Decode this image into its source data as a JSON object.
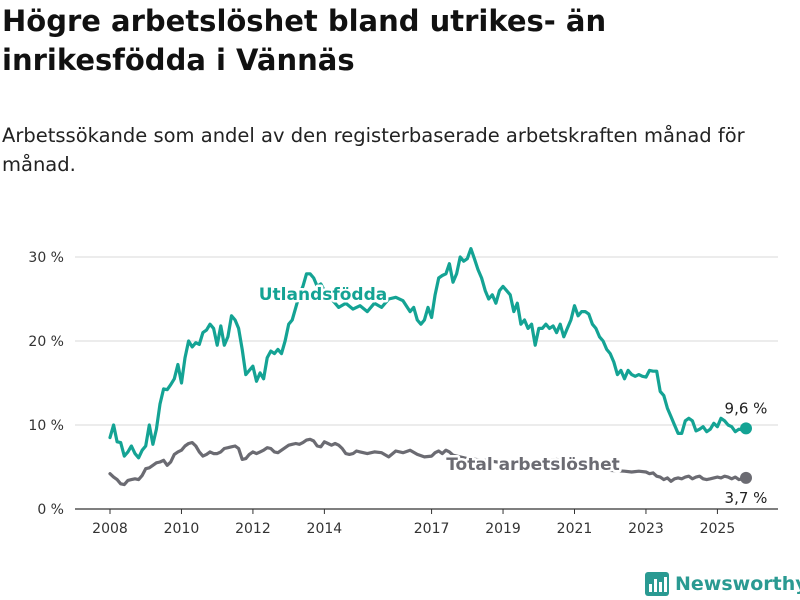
{
  "title": "Högre arbetslöshet bland utrikes- än inrikesfödda i Vännäs",
  "subtitle": "Arbetssökande som andel av den registerbaserade arbetskraften månad för månad.",
  "logo_text": "Newsworthy",
  "logo_icon": "newsworthy-logo-icon",
  "colors": {
    "foreign": "#14a394",
    "total": "#6b6b72",
    "grid": "#d9d9d9"
  },
  "chart_data": {
    "type": "line",
    "title": "Högre arbetslöshet bland utrikes- än inrikesfödda i Vännäs",
    "subtitle": "Arbetssökande som andel av den registerbaserade arbetskraften månad för månad.",
    "xlabel": "",
    "ylabel": "",
    "ylim": [
      0,
      30
    ],
    "xlim": [
      2008,
      2025.8
    ],
    "grid": true,
    "y_ticks": [
      0,
      10,
      20,
      30
    ],
    "y_tick_labels": [
      "0 %",
      "10 %",
      "20 %",
      "30 %"
    ],
    "x_ticks": [
      2008,
      2010,
      2012,
      2014,
      2017,
      2019,
      2021,
      2023,
      2025
    ],
    "x_tick_labels": [
      "2008",
      "2010",
      "2012",
      "2014",
      "2017",
      "2019",
      "2021",
      "2023",
      "2025"
    ],
    "series": [
      {
        "name": "Utlandsfödda",
        "color": "#14a394",
        "end_label": "9,6 %",
        "points": [
          [
            2008.0,
            8.5
          ],
          [
            2008.1,
            10.0
          ],
          [
            2008.2,
            8.0
          ],
          [
            2008.3,
            7.9
          ],
          [
            2008.4,
            6.3
          ],
          [
            2008.5,
            6.8
          ],
          [
            2008.6,
            7.5
          ],
          [
            2008.7,
            6.6
          ],
          [
            2008.8,
            6.1
          ],
          [
            2008.9,
            7.0
          ],
          [
            2009.0,
            7.5
          ],
          [
            2009.1,
            10.0
          ],
          [
            2009.2,
            7.7
          ],
          [
            2009.3,
            9.5
          ],
          [
            2009.4,
            12.5
          ],
          [
            2009.5,
            14.3
          ],
          [
            2009.6,
            14.2
          ],
          [
            2009.7,
            14.8
          ],
          [
            2009.8,
            15.5
          ],
          [
            2009.9,
            17.2
          ],
          [
            2010.0,
            15.0
          ],
          [
            2010.1,
            18.0
          ],
          [
            2010.2,
            20.0
          ],
          [
            2010.3,
            19.3
          ],
          [
            2010.4,
            19.8
          ],
          [
            2010.5,
            19.6
          ],
          [
            2010.6,
            21.0
          ],
          [
            2010.7,
            21.3
          ],
          [
            2010.8,
            22.0
          ],
          [
            2010.9,
            21.5
          ],
          [
            2011.0,
            19.5
          ],
          [
            2011.1,
            21.8
          ],
          [
            2011.2,
            19.5
          ],
          [
            2011.3,
            20.5
          ],
          [
            2011.4,
            23.0
          ],
          [
            2011.5,
            22.5
          ],
          [
            2011.6,
            21.5
          ],
          [
            2011.7,
            19.0
          ],
          [
            2011.8,
            16.0
          ],
          [
            2011.9,
            16.5
          ],
          [
            2012.0,
            17.0
          ],
          [
            2012.1,
            15.2
          ],
          [
            2012.2,
            16.2
          ],
          [
            2012.3,
            15.5
          ],
          [
            2012.4,
            18.0
          ],
          [
            2012.5,
            18.8
          ],
          [
            2012.6,
            18.5
          ],
          [
            2012.7,
            19.0
          ],
          [
            2012.8,
            18.5
          ],
          [
            2012.9,
            20.0
          ],
          [
            2013.0,
            22.0
          ],
          [
            2013.1,
            22.5
          ],
          [
            2013.2,
            24.0
          ],
          [
            2013.3,
            25.5
          ],
          [
            2013.4,
            26.5
          ],
          [
            2013.5,
            28.0
          ],
          [
            2013.6,
            28.0
          ],
          [
            2013.7,
            27.5
          ],
          [
            2013.8,
            26.5
          ],
          [
            2013.9,
            26.8
          ],
          [
            2014.0,
            26.0
          ],
          [
            2014.2,
            25.0
          ],
          [
            2014.4,
            24.0
          ],
          [
            2014.6,
            24.5
          ],
          [
            2014.8,
            23.8
          ],
          [
            2015.0,
            24.2
          ],
          [
            2015.2,
            23.5
          ],
          [
            2015.4,
            24.5
          ],
          [
            2015.6,
            24.0
          ],
          [
            2015.8,
            25.0
          ],
          [
            2016.0,
            25.2
          ],
          [
            2016.2,
            24.8
          ],
          [
            2016.4,
            23.5
          ],
          [
            2016.5,
            24.0
          ],
          [
            2016.6,
            22.5
          ],
          [
            2016.7,
            22.0
          ],
          [
            2016.8,
            22.5
          ],
          [
            2016.9,
            24.0
          ],
          [
            2017.0,
            22.8
          ],
          [
            2017.1,
            25.5
          ],
          [
            2017.2,
            27.5
          ],
          [
            2017.3,
            27.8
          ],
          [
            2017.4,
            28.0
          ],
          [
            2017.5,
            29.2
          ],
          [
            2017.6,
            27.0
          ],
          [
            2017.7,
            28.0
          ],
          [
            2017.8,
            30.0
          ],
          [
            2017.9,
            29.5
          ],
          [
            2018.0,
            29.8
          ],
          [
            2018.1,
            31.0
          ],
          [
            2018.2,
            29.8
          ],
          [
            2018.3,
            28.5
          ],
          [
            2018.4,
            27.5
          ],
          [
            2018.5,
            26.0
          ],
          [
            2018.6,
            25.0
          ],
          [
            2018.7,
            25.5
          ],
          [
            2018.8,
            24.5
          ],
          [
            2018.9,
            26.0
          ],
          [
            2019.0,
            26.5
          ],
          [
            2019.1,
            26.0
          ],
          [
            2019.2,
            25.5
          ],
          [
            2019.3,
            23.5
          ],
          [
            2019.4,
            24.5
          ],
          [
            2019.5,
            22.0
          ],
          [
            2019.6,
            22.5
          ],
          [
            2019.7,
            21.5
          ],
          [
            2019.8,
            22.0
          ],
          [
            2019.9,
            19.5
          ],
          [
            2020.0,
            21.5
          ],
          [
            2020.1,
            21.5
          ],
          [
            2020.2,
            22.0
          ],
          [
            2020.3,
            21.5
          ],
          [
            2020.4,
            21.8
          ],
          [
            2020.5,
            21.0
          ],
          [
            2020.6,
            22.0
          ],
          [
            2020.7,
            20.5
          ],
          [
            2020.8,
            21.5
          ],
          [
            2020.9,
            22.5
          ],
          [
            2021.0,
            24.2
          ],
          [
            2021.1,
            23.0
          ],
          [
            2021.2,
            23.5
          ],
          [
            2021.3,
            23.5
          ],
          [
            2021.4,
            23.2
          ],
          [
            2021.5,
            22.0
          ],
          [
            2021.6,
            21.5
          ],
          [
            2021.7,
            20.5
          ],
          [
            2021.8,
            20.0
          ],
          [
            2021.9,
            19.0
          ],
          [
            2022.0,
            18.5
          ],
          [
            2022.1,
            17.5
          ],
          [
            2022.2,
            16.0
          ],
          [
            2022.3,
            16.5
          ],
          [
            2022.4,
            15.5
          ],
          [
            2022.5,
            16.5
          ],
          [
            2022.6,
            16.0
          ],
          [
            2022.7,
            15.8
          ],
          [
            2022.8,
            16.0
          ],
          [
            2022.9,
            15.8
          ],
          [
            2023.0,
            15.7
          ],
          [
            2023.1,
            16.5
          ],
          [
            2023.2,
            16.4
          ],
          [
            2023.3,
            16.4
          ],
          [
            2023.4,
            14.0
          ],
          [
            2023.5,
            13.5
          ],
          [
            2023.6,
            12.0
          ],
          [
            2023.7,
            11.0
          ],
          [
            2023.8,
            10.0
          ],
          [
            2023.9,
            9.0
          ],
          [
            2024.0,
            9.0
          ],
          [
            2024.1,
            10.5
          ],
          [
            2024.2,
            10.8
          ],
          [
            2024.3,
            10.5
          ],
          [
            2024.4,
            9.3
          ],
          [
            2024.5,
            9.5
          ],
          [
            2024.6,
            9.8
          ],
          [
            2024.7,
            9.2
          ],
          [
            2024.8,
            9.5
          ],
          [
            2024.9,
            10.2
          ],
          [
            2025.0,
            9.8
          ],
          [
            2025.1,
            10.8
          ],
          [
            2025.2,
            10.5
          ],
          [
            2025.3,
            10.0
          ],
          [
            2025.4,
            9.8
          ],
          [
            2025.5,
            9.2
          ],
          [
            2025.6,
            9.5
          ],
          [
            2025.7,
            9.4
          ],
          [
            2025.8,
            9.6
          ]
        ]
      },
      {
        "name": "Total arbetslöshet",
        "color": "#6b6b72",
        "end_label": "3,7 %",
        "points": [
          [
            2008.0,
            4.2
          ],
          [
            2008.1,
            3.8
          ],
          [
            2008.2,
            3.5
          ],
          [
            2008.3,
            3.0
          ],
          [
            2008.4,
            2.9
          ],
          [
            2008.5,
            3.4
          ],
          [
            2008.6,
            3.5
          ],
          [
            2008.7,
            3.6
          ],
          [
            2008.8,
            3.5
          ],
          [
            2008.9,
            4.0
          ],
          [
            2009.0,
            4.8
          ],
          [
            2009.1,
            4.9
          ],
          [
            2009.2,
            5.2
          ],
          [
            2009.3,
            5.5
          ],
          [
            2009.4,
            5.6
          ],
          [
            2009.5,
            5.8
          ],
          [
            2009.6,
            5.2
          ],
          [
            2009.7,
            5.6
          ],
          [
            2009.8,
            6.5
          ],
          [
            2009.9,
            6.8
          ],
          [
            2010.0,
            7.0
          ],
          [
            2010.1,
            7.5
          ],
          [
            2010.2,
            7.8
          ],
          [
            2010.3,
            7.9
          ],
          [
            2010.4,
            7.5
          ],
          [
            2010.5,
            6.8
          ],
          [
            2010.6,
            6.3
          ],
          [
            2010.7,
            6.5
          ],
          [
            2010.8,
            6.8
          ],
          [
            2010.9,
            6.6
          ],
          [
            2011.0,
            6.6
          ],
          [
            2011.1,
            6.8
          ],
          [
            2011.2,
            7.2
          ],
          [
            2011.3,
            7.3
          ],
          [
            2011.4,
            7.4
          ],
          [
            2011.5,
            7.5
          ],
          [
            2011.6,
            7.2
          ],
          [
            2011.7,
            5.9
          ],
          [
            2011.8,
            6.0
          ],
          [
            2011.9,
            6.5
          ],
          [
            2012.0,
            6.8
          ],
          [
            2012.1,
            6.6
          ],
          [
            2012.2,
            6.8
          ],
          [
            2012.3,
            7.0
          ],
          [
            2012.4,
            7.3
          ],
          [
            2012.5,
            7.2
          ],
          [
            2012.6,
            6.8
          ],
          [
            2012.7,
            6.7
          ],
          [
            2012.8,
            7.0
          ],
          [
            2012.9,
            7.3
          ],
          [
            2013.0,
            7.6
          ],
          [
            2013.1,
            7.7
          ],
          [
            2013.2,
            7.8
          ],
          [
            2013.3,
            7.7
          ],
          [
            2013.4,
            7.9
          ],
          [
            2013.5,
            8.2
          ],
          [
            2013.6,
            8.3
          ],
          [
            2013.7,
            8.1
          ],
          [
            2013.8,
            7.5
          ],
          [
            2013.9,
            7.4
          ],
          [
            2014.0,
            8.0
          ],
          [
            2014.1,
            7.8
          ],
          [
            2014.2,
            7.6
          ],
          [
            2014.3,
            7.8
          ],
          [
            2014.4,
            7.6
          ],
          [
            2014.5,
            7.2
          ],
          [
            2014.6,
            6.6
          ],
          [
            2014.7,
            6.5
          ],
          [
            2014.8,
            6.6
          ],
          [
            2014.9,
            6.9
          ],
          [
            2015.0,
            6.8
          ],
          [
            2015.2,
            6.6
          ],
          [
            2015.4,
            6.8
          ],
          [
            2015.6,
            6.7
          ],
          [
            2015.8,
            6.2
          ],
          [
            2016.0,
            6.9
          ],
          [
            2016.2,
            6.7
          ],
          [
            2016.4,
            7.0
          ],
          [
            2016.6,
            6.5
          ],
          [
            2016.8,
            6.2
          ],
          [
            2017.0,
            6.3
          ],
          [
            2017.1,
            6.7
          ],
          [
            2017.2,
            6.9
          ],
          [
            2017.3,
            6.6
          ],
          [
            2017.4,
            7.0
          ],
          [
            2017.5,
            6.8
          ],
          [
            2017.6,
            6.4
          ],
          [
            2017.8,
            6.2
          ],
          [
            2018.0,
            6.0
          ],
          [
            2018.5,
            5.8
          ],
          [
            2019.0,
            5.5
          ],
          [
            2019.5,
            5.4
          ],
          [
            2020.0,
            5.6
          ],
          [
            2020.5,
            5.9
          ],
          [
            2021.0,
            5.3
          ],
          [
            2021.5,
            5.0
          ],
          [
            2022.0,
            4.6
          ],
          [
            2022.4,
            4.5
          ],
          [
            2022.6,
            4.4
          ],
          [
            2022.8,
            4.5
          ],
          [
            2023.0,
            4.4
          ],
          [
            2023.1,
            4.2
          ],
          [
            2023.2,
            4.3
          ],
          [
            2023.3,
            3.9
          ],
          [
            2023.4,
            3.8
          ],
          [
            2023.5,
            3.5
          ],
          [
            2023.6,
            3.7
          ],
          [
            2023.7,
            3.3
          ],
          [
            2023.8,
            3.6
          ],
          [
            2023.9,
            3.7
          ],
          [
            2024.0,
            3.6
          ],
          [
            2024.1,
            3.8
          ],
          [
            2024.2,
            3.9
          ],
          [
            2024.3,
            3.6
          ],
          [
            2024.4,
            3.8
          ],
          [
            2024.5,
            3.9
          ],
          [
            2024.6,
            3.6
          ],
          [
            2024.7,
            3.5
          ],
          [
            2024.8,
            3.6
          ],
          [
            2024.9,
            3.7
          ],
          [
            2025.0,
            3.8
          ],
          [
            2025.1,
            3.7
          ],
          [
            2025.2,
            3.9
          ],
          [
            2025.3,
            3.8
          ],
          [
            2025.4,
            3.6
          ],
          [
            2025.5,
            3.8
          ],
          [
            2025.6,
            3.5
          ],
          [
            2025.7,
            3.6
          ],
          [
            2025.8,
            3.7
          ]
        ]
      }
    ]
  }
}
